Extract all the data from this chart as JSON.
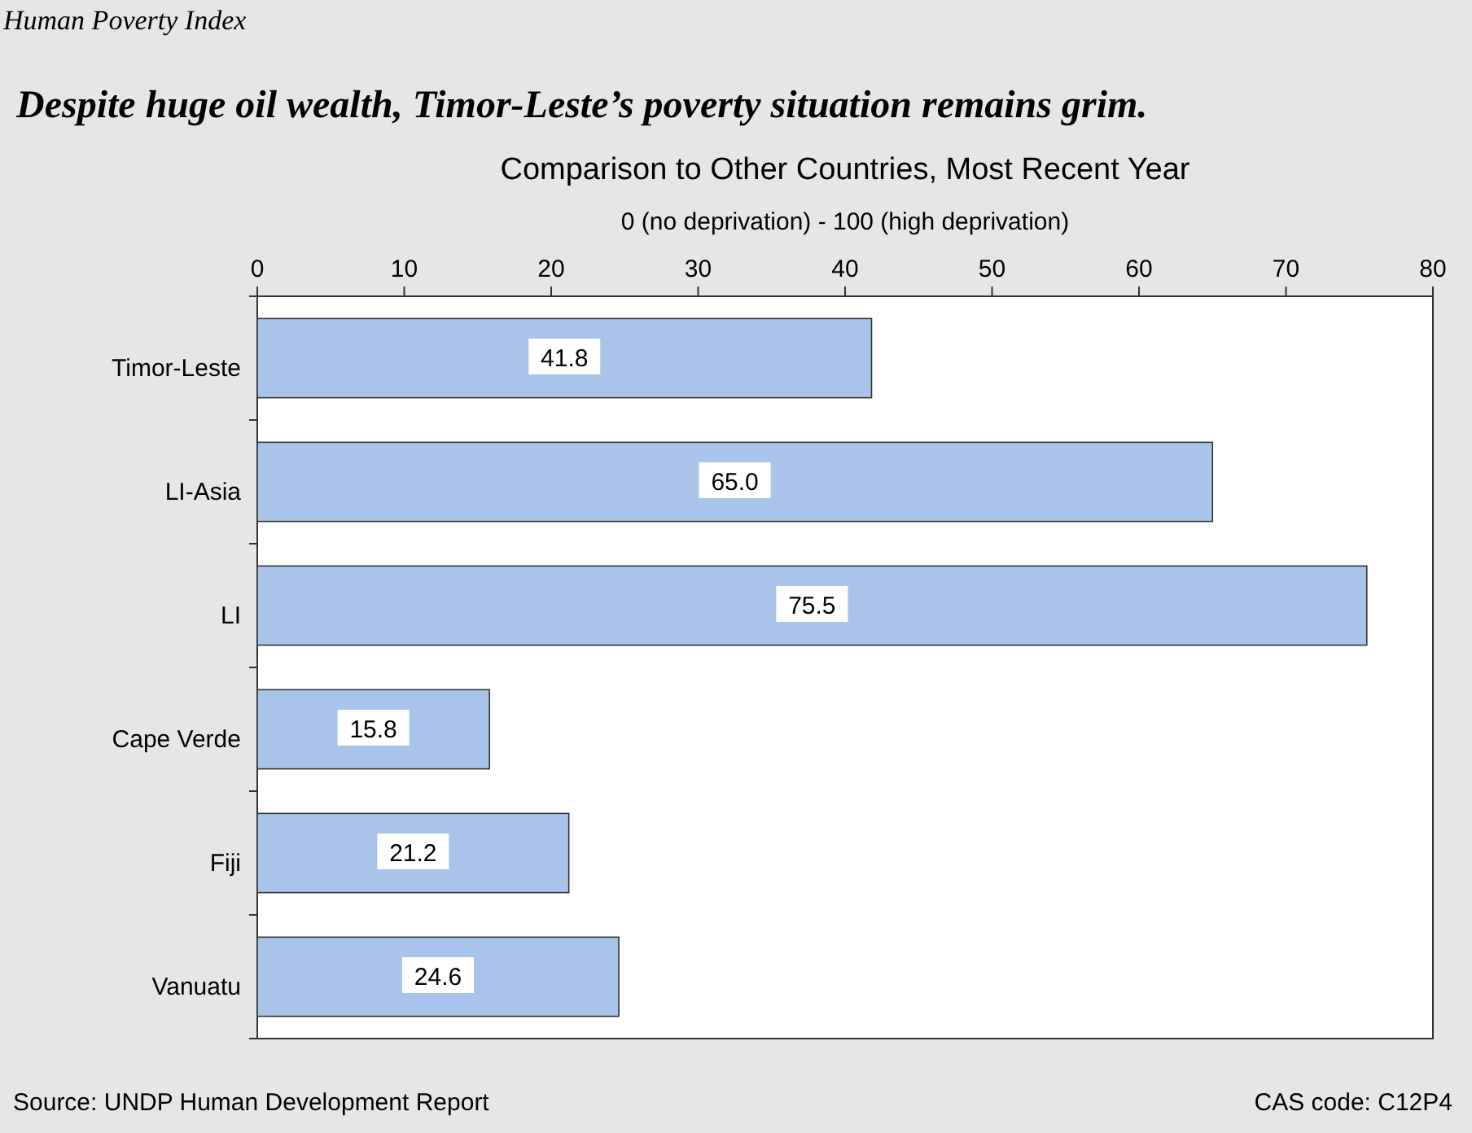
{
  "chart_data": {
    "type": "bar",
    "orientation": "horizontal",
    "title": "Despite huge oil wealth, Timor-Leste’s poverty situation remains grim.",
    "subtitle": "Comparison to Other Countries, Most Recent Year",
    "xlabel": "0 (no deprivation) - 100 (high deprivation)",
    "categories": [
      "Timor-Leste",
      "LI-Asia",
      "LI",
      "Cape Verde",
      "Fiji",
      "Vanuatu"
    ],
    "values": [
      41.8,
      65.0,
      75.5,
      15.8,
      21.2,
      24.6
    ],
    "value_labels": [
      "41.8",
      "65.0",
      "75.5",
      "15.8",
      "21.2",
      "24.6"
    ],
    "color": "#a8c4ea",
    "xlim": [
      0,
      80
    ],
    "xticks": [
      0,
      10,
      20,
      30,
      40,
      50,
      60,
      70,
      80
    ],
    "grid": false,
    "annotations": [
      "Human Poverty Index",
      "Source: UNDP Human Development Report",
      "CAS code: C12P4"
    ]
  }
}
